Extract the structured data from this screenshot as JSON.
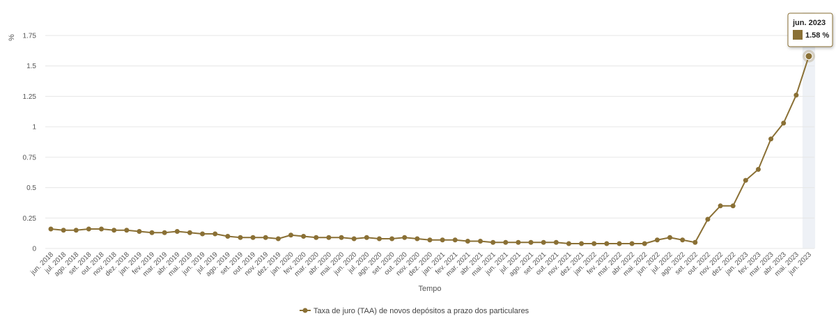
{
  "chart_data": {
    "type": "line",
    "ylabel": "%",
    "xlabel": "Tempo",
    "ylim": [
      0,
      1.75
    ],
    "yticks": [
      "0",
      "0.25",
      "0.5",
      "0.75",
      "1",
      "1.25",
      "1.5",
      "1.75"
    ],
    "grid": true,
    "legend_position": "bottom-center",
    "categories": [
      "jun. 2018",
      "jul. 2018",
      "ago. 2018",
      "set. 2018",
      "out. 2018",
      "nov. 2018",
      "dez. 2018",
      "jan. 2019",
      "fev. 2019",
      "mar. 2019",
      "abr. 2019",
      "mai. 2019",
      "jun. 2019",
      "jul. 2019",
      "ago. 2019",
      "set. 2019",
      "out. 2019",
      "nov. 2019",
      "dez. 2019",
      "jan. 2020",
      "fev. 2020",
      "mar. 2020",
      "abr. 2020",
      "mai. 2020",
      "jun. 2020",
      "jul. 2020",
      "ago. 2020",
      "set. 2020",
      "out. 2020",
      "nov. 2020",
      "dez. 2020",
      "jan. 2021",
      "fev. 2021",
      "mar. 2021",
      "abr. 2021",
      "mai. 2021",
      "jun. 2021",
      "jul. 2021",
      "ago. 2021",
      "set. 2021",
      "out. 2021",
      "nov. 2021",
      "dez. 2021",
      "jan. 2022",
      "fev. 2022",
      "mar. 2022",
      "abr. 2022",
      "mai. 2022",
      "jun. 2022",
      "jul. 2022",
      "ago. 2022",
      "set. 2022",
      "out. 2022",
      "nov. 2022",
      "dez. 2022",
      "jan. 2023",
      "fev. 2023",
      "mar. 2023",
      "abr. 2023",
      "mai. 2023",
      "jun. 2023"
    ],
    "series": [
      {
        "name": "Taxa de juro (TAA) de novos depósitos a prazo dos particulares",
        "color": "#8a7035",
        "values": [
          0.16,
          0.15,
          0.15,
          0.16,
          0.16,
          0.15,
          0.15,
          0.14,
          0.13,
          0.13,
          0.14,
          0.13,
          0.12,
          0.12,
          0.1,
          0.09,
          0.09,
          0.09,
          0.08,
          0.11,
          0.1,
          0.09,
          0.09,
          0.09,
          0.08,
          0.09,
          0.08,
          0.08,
          0.09,
          0.08,
          0.07,
          0.07,
          0.07,
          0.06,
          0.06,
          0.05,
          0.05,
          0.05,
          0.05,
          0.05,
          0.05,
          0.04,
          0.04,
          0.04,
          0.04,
          0.04,
          0.04,
          0.04,
          0.07,
          0.09,
          0.07,
          0.05,
          0.24,
          0.35,
          0.35,
          0.56,
          0.65,
          0.9,
          1.03,
          1.26,
          1.58
        ]
      }
    ],
    "tooltip": {
      "title": "jun. 2023",
      "value": "1.58 %",
      "category_index": 60
    },
    "highlight_band_color": "#eef1f6",
    "grid_color": "#e6e6e6"
  }
}
